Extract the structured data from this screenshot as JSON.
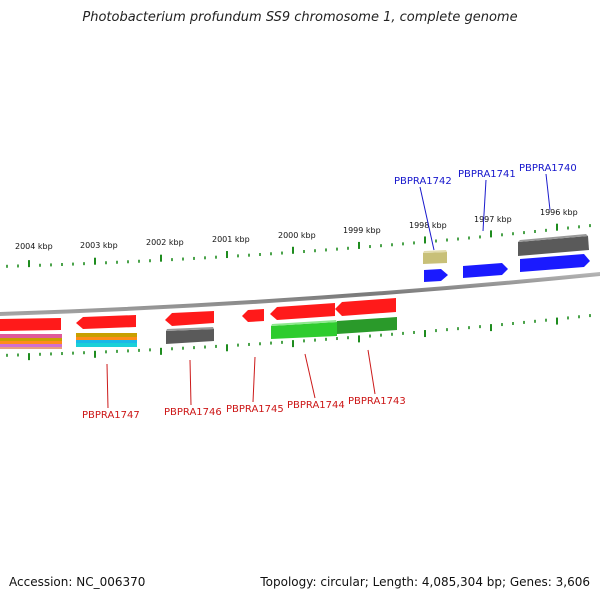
{
  "title": "Photobacterium profundum SS9 chromosome 1, complete genome",
  "footer": {
    "accession": "Accession: NC_006370",
    "stats": "Topology: circular; Length: 4,085,304 bp; Genes: 3,606"
  },
  "ruler_labels": [
    "2004 kbp",
    "2003 kbp",
    "2002 kbp",
    "2001 kbp",
    "2000 kbp",
    "1999 kbp",
    "1998 kbp",
    "1997 kbp",
    "1996 kbp"
  ],
  "top_genes": [
    "PBPRA1742",
    "PBPRA1741",
    "PBPRA1740"
  ],
  "bottom_genes": [
    "PBPRA1747",
    "PBPRA1746",
    "PBPRA1745",
    "PBPRA1744",
    "PBPRA1743"
  ],
  "colors": {
    "gene_red": "#ff1a1a",
    "gene_blue": "#1a1aff",
    "gene_gray": "#5a5a5a",
    "gene_green": "#2ecc2e",
    "gene_olive": "#c8c078",
    "tick_green": "#1e8c1e",
    "backbone": "#8a8a8a"
  }
}
